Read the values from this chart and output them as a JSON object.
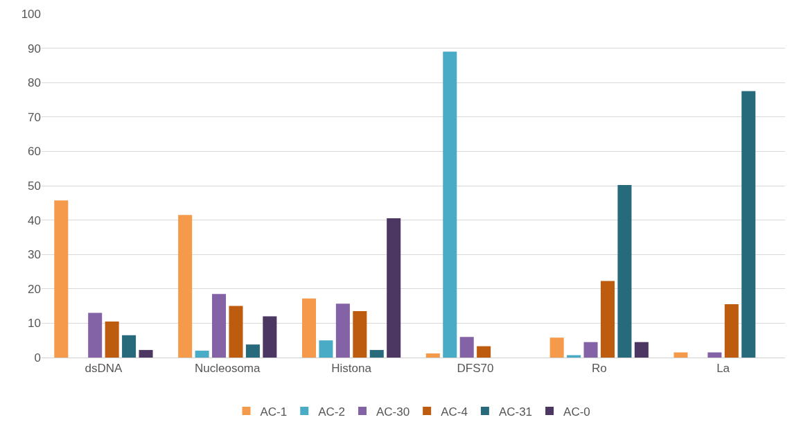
{
  "chart_data": {
    "type": "bar",
    "categories": [
      "dsDNA",
      "Nucleosoma",
      "Histona",
      "DFS70",
      "Ro",
      "La"
    ],
    "series": [
      {
        "name": "AC-1",
        "color": "#f59a4b",
        "values": [
          45.7,
          41.5,
          17.2,
          1.2,
          5.8,
          1.5
        ]
      },
      {
        "name": "AC-2",
        "color": "#4aabc7",
        "values": [
          0,
          2,
          5,
          89,
          0.7,
          0
        ]
      },
      {
        "name": "AC-30",
        "color": "#8462a6",
        "values": [
          13,
          18.5,
          15.7,
          6,
          4.5,
          1.5
        ]
      },
      {
        "name": "AC-4",
        "color": "#bd5b0e",
        "values": [
          10.5,
          15,
          13.5,
          3.3,
          22.3,
          15.5
        ]
      },
      {
        "name": "AC-31",
        "color": "#276a7b",
        "values": [
          6.5,
          3.8,
          2.2,
          0,
          50.2,
          77.5
        ]
      },
      {
        "name": "AC-0",
        "color": "#4b3761",
        "values": [
          2.2,
          12,
          40.5,
          0,
          4.5,
          0
        ]
      }
    ],
    "ylim": [
      0,
      100
    ],
    "yticks": [
      0,
      10,
      20,
      30,
      40,
      50,
      60,
      70,
      80,
      90,
      100
    ],
    "grid": "y",
    "legend": "bottom"
  }
}
